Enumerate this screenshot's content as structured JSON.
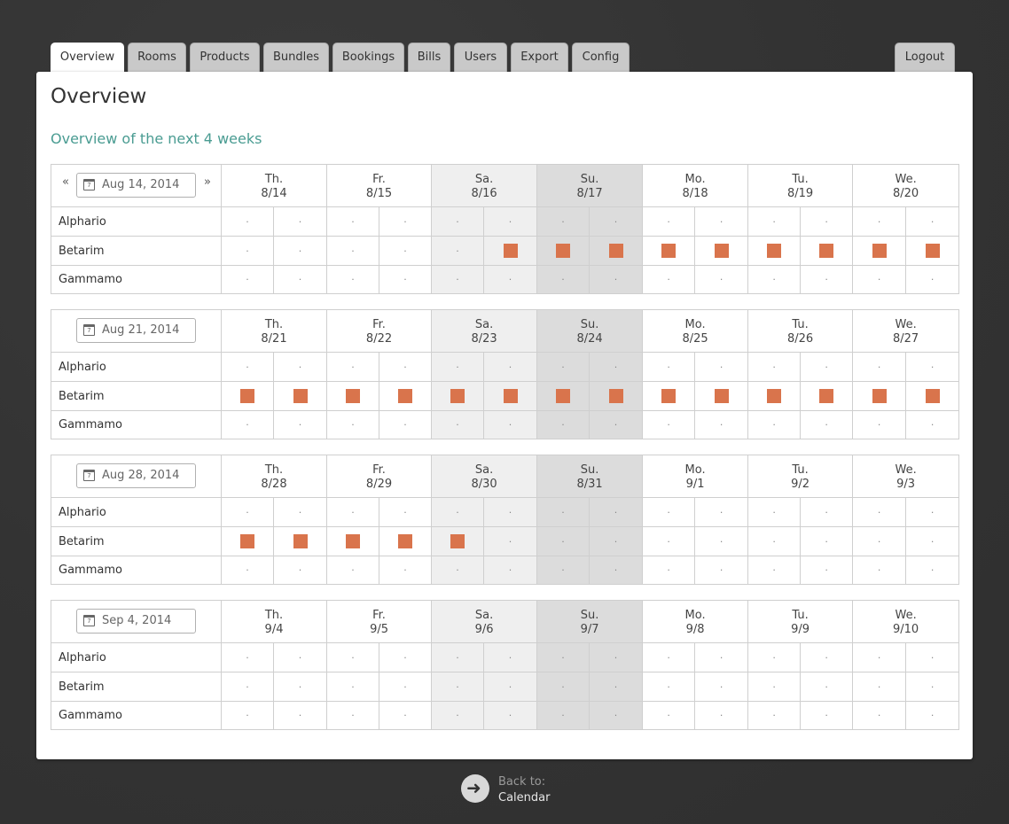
{
  "nav": {
    "tabs": [
      {
        "label": "Overview",
        "active": true
      },
      {
        "label": "Rooms",
        "active": false
      },
      {
        "label": "Products",
        "active": false
      },
      {
        "label": "Bundles",
        "active": false
      },
      {
        "label": "Bookings",
        "active": false
      },
      {
        "label": "Bills",
        "active": false
      },
      {
        "label": "Users",
        "active": false
      },
      {
        "label": "Export",
        "active": false
      },
      {
        "label": "Config",
        "active": false
      }
    ],
    "logout": "Logout"
  },
  "page": {
    "title": "Overview",
    "subtitle": "Overview of the next 4 weeks"
  },
  "nav_prev": "«",
  "nav_next": "»",
  "empty_slot": "·",
  "rooms": [
    "Alphario",
    "Betarim",
    "Gammamo"
  ],
  "weeks": [
    {
      "start_date": "Aug 14, 2014",
      "days": [
        {
          "dow": "Th.",
          "date": "8/14"
        },
        {
          "dow": "Fr.",
          "date": "8/15"
        },
        {
          "dow": "Sa.",
          "date": "8/16"
        },
        {
          "dow": "Su.",
          "date": "8/17"
        },
        {
          "dow": "Mo.",
          "date": "8/18"
        },
        {
          "dow": "Tu.",
          "date": "8/19"
        },
        {
          "dow": "We.",
          "date": "8/20"
        }
      ],
      "bookings": {
        "Alphario": [
          0,
          0,
          0,
          0,
          0,
          0,
          0,
          0,
          0,
          0,
          0,
          0,
          0,
          0
        ],
        "Betarim": [
          0,
          0,
          0,
          0,
          0,
          1,
          1,
          1,
          1,
          1,
          1,
          1,
          1,
          1
        ],
        "Gammamo": [
          0,
          0,
          0,
          0,
          0,
          0,
          0,
          0,
          0,
          0,
          0,
          0,
          0,
          0
        ]
      }
    },
    {
      "start_date": "Aug 21, 2014",
      "days": [
        {
          "dow": "Th.",
          "date": "8/21"
        },
        {
          "dow": "Fr.",
          "date": "8/22"
        },
        {
          "dow": "Sa.",
          "date": "8/23"
        },
        {
          "dow": "Su.",
          "date": "8/24"
        },
        {
          "dow": "Mo.",
          "date": "8/25"
        },
        {
          "dow": "Tu.",
          "date": "8/26"
        },
        {
          "dow": "We.",
          "date": "8/27"
        }
      ],
      "bookings": {
        "Alphario": [
          0,
          0,
          0,
          0,
          0,
          0,
          0,
          0,
          0,
          0,
          0,
          0,
          0,
          0
        ],
        "Betarim": [
          1,
          1,
          1,
          1,
          1,
          1,
          1,
          1,
          1,
          1,
          1,
          1,
          1,
          1
        ],
        "Gammamo": [
          0,
          0,
          0,
          0,
          0,
          0,
          0,
          0,
          0,
          0,
          0,
          0,
          0,
          0
        ]
      }
    },
    {
      "start_date": "Aug 28, 2014",
      "days": [
        {
          "dow": "Th.",
          "date": "8/28"
        },
        {
          "dow": "Fr.",
          "date": "8/29"
        },
        {
          "dow": "Sa.",
          "date": "8/30"
        },
        {
          "dow": "Su.",
          "date": "8/31"
        },
        {
          "dow": "Mo.",
          "date": "9/1"
        },
        {
          "dow": "Tu.",
          "date": "9/2"
        },
        {
          "dow": "We.",
          "date": "9/3"
        }
      ],
      "bookings": {
        "Alphario": [
          0,
          0,
          0,
          0,
          0,
          0,
          0,
          0,
          0,
          0,
          0,
          0,
          0,
          0
        ],
        "Betarim": [
          1,
          1,
          1,
          1,
          1,
          0,
          0,
          0,
          0,
          0,
          0,
          0,
          0,
          0
        ],
        "Gammamo": [
          0,
          0,
          0,
          0,
          0,
          0,
          0,
          0,
          0,
          0,
          0,
          0,
          0,
          0
        ]
      }
    },
    {
      "start_date": "Sep 4, 2014",
      "days": [
        {
          "dow": "Th.",
          "date": "9/4"
        },
        {
          "dow": "Fr.",
          "date": "9/5"
        },
        {
          "dow": "Sa.",
          "date": "9/6"
        },
        {
          "dow": "Su.",
          "date": "9/7"
        },
        {
          "dow": "Mo.",
          "date": "9/8"
        },
        {
          "dow": "Tu.",
          "date": "9/9"
        },
        {
          "dow": "We.",
          "date": "9/10"
        }
      ],
      "bookings": {
        "Alphario": [
          0,
          0,
          0,
          0,
          0,
          0,
          0,
          0,
          0,
          0,
          0,
          0,
          0,
          0
        ],
        "Betarim": [
          0,
          0,
          0,
          0,
          0,
          0,
          0,
          0,
          0,
          0,
          0,
          0,
          0,
          0
        ],
        "Gammamo": [
          0,
          0,
          0,
          0,
          0,
          0,
          0,
          0,
          0,
          0,
          0,
          0,
          0,
          0
        ]
      }
    }
  ],
  "footer": {
    "back_label": "Back to:",
    "back_link": "Calendar"
  },
  "colors": {
    "booked": "#d9744c",
    "saturday": "#efefef",
    "sunday": "#dcdcdc",
    "accent": "#4a9c92"
  }
}
